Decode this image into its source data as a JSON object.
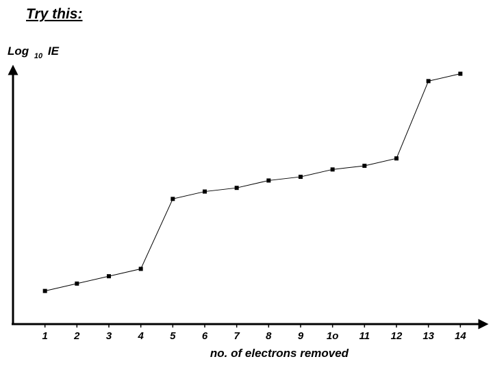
{
  "header": {
    "title": "Try this:"
  },
  "chart_data": {
    "type": "line",
    "ylabel": {
      "main": "Log",
      "sub": "10",
      "tail": "IE"
    },
    "xlabel": "no. of electrons removed",
    "categories": [
      "1",
      "2",
      "3",
      "4",
      "5",
      "6",
      "7",
      "8",
      "9",
      "1o",
      "11",
      "12",
      "13",
      "14"
    ],
    "x": [
      1,
      2,
      3,
      4,
      5,
      6,
      7,
      8,
      9,
      10,
      11,
      12,
      13,
      14
    ],
    "values": [
      0.9,
      1.1,
      1.3,
      1.5,
      3.4,
      3.6,
      3.7,
      3.9,
      4.0,
      4.2,
      4.3,
      4.5,
      6.6,
      6.8
    ],
    "xlim": [
      0,
      14.7
    ],
    "ylim": [
      0,
      7.5
    ],
    "y_tick_labels": false,
    "grid": false,
    "legend": "none",
    "colors": {
      "line": "#000000",
      "point": "#000000",
      "axis": "#000000"
    }
  }
}
